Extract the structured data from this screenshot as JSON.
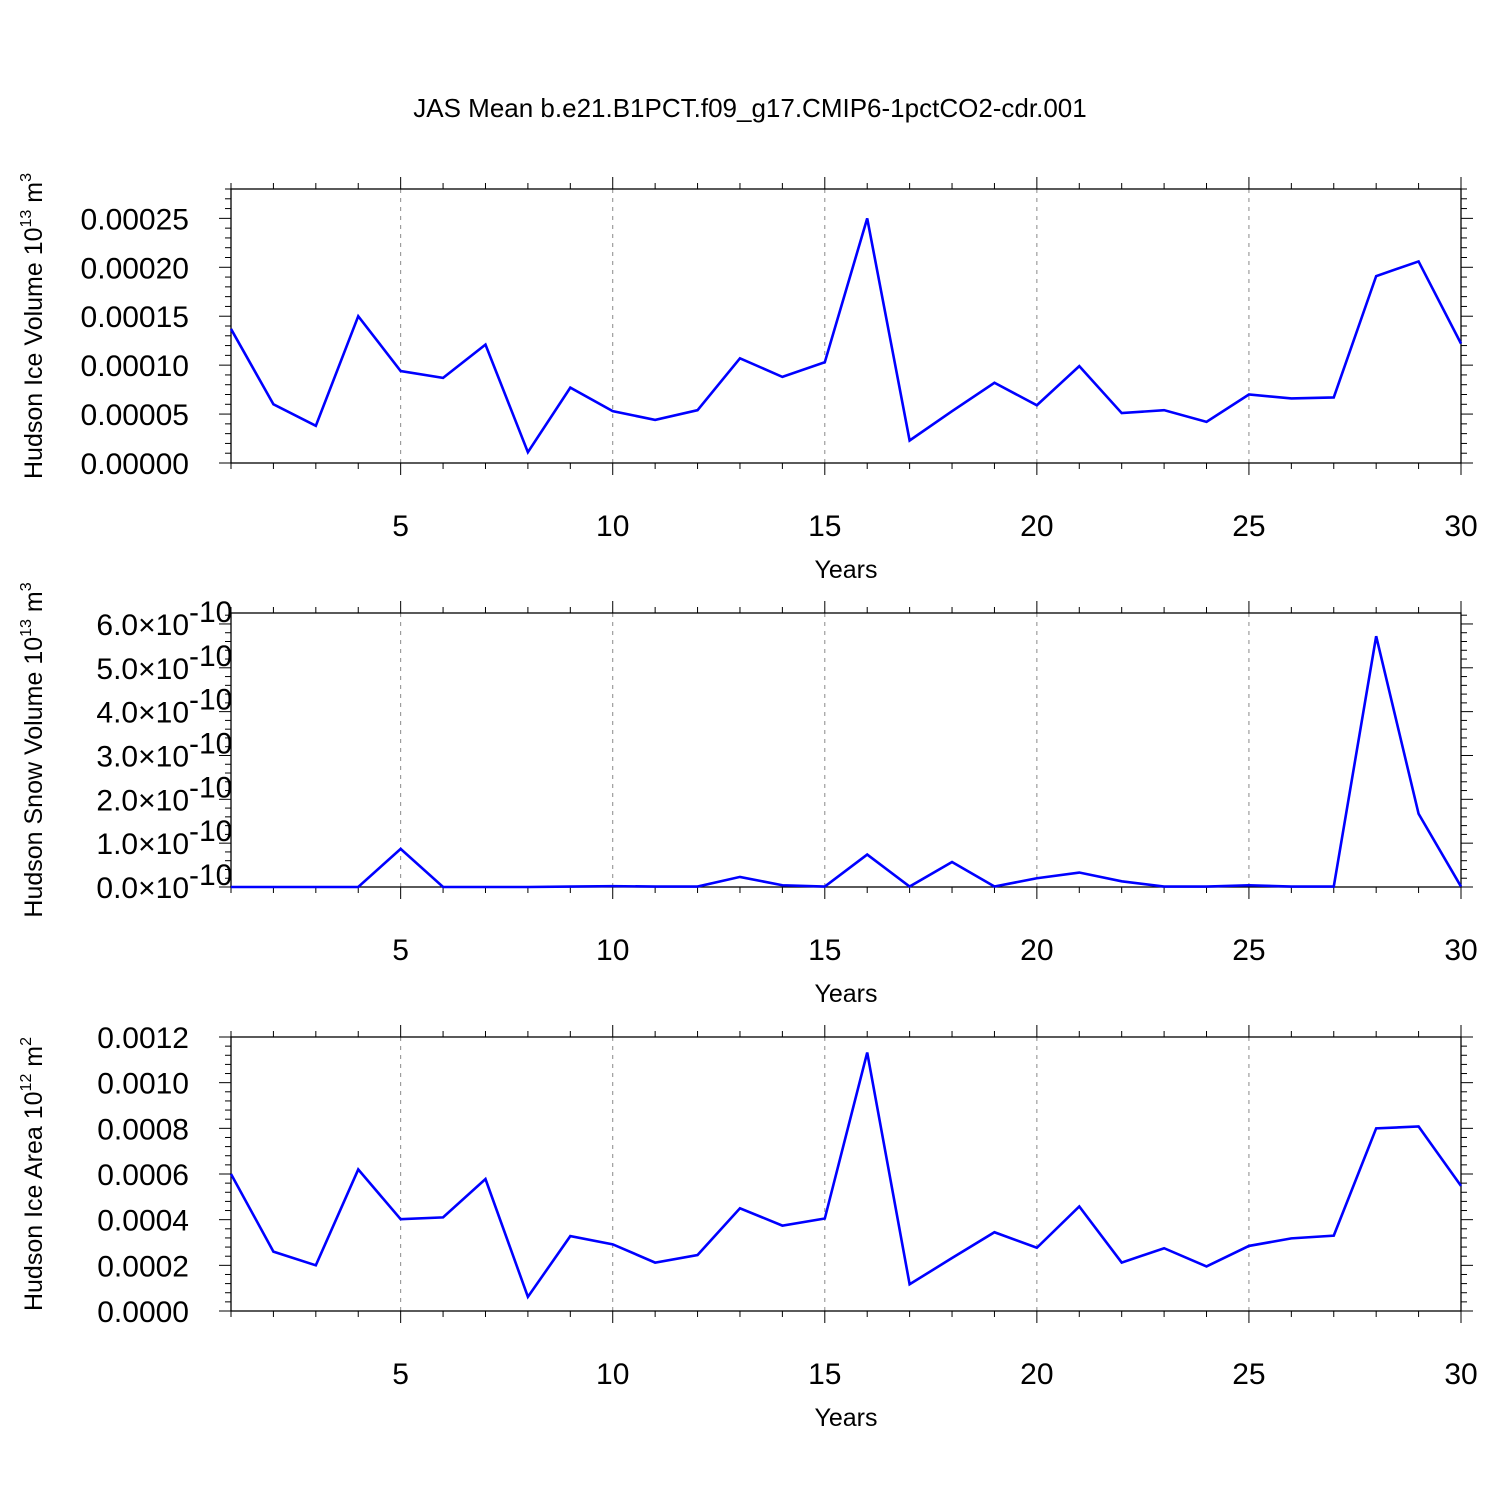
{
  "title": "JAS Mean b.e21.B1PCT.f09_g17.CMIP6-1pctCO2-cdr.001",
  "colors": {
    "series": "#0000ff",
    "axes": "#000000",
    "grid": "#8a8a8a"
  },
  "chart_data": [
    {
      "type": "line",
      "title": "JAS Mean b.e21.B1PCT.f09_g17.CMIP6-1pctCO2-cdr.001",
      "xlabel": "Years",
      "ylabel": {
        "text": "Hudson Ice Volume 10",
        "exp": "13",
        "unit": " m",
        "unit_exp": "3"
      },
      "xlim": [
        1,
        30
      ],
      "ylim": [
        0,
        0.00028
      ],
      "x_ticks": [
        5,
        10,
        15,
        20,
        25,
        30
      ],
      "x_tick_labels": [
        "5",
        "10",
        "15",
        "20",
        "25",
        "30"
      ],
      "y_ticks": [
        0,
        5e-05,
        0.0001,
        0.00015,
        0.0002,
        0.00025
      ],
      "y_tick_labels": [
        {
          "text": "0.00000"
        },
        {
          "text": "0.00005"
        },
        {
          "text": "0.00010"
        },
        {
          "text": "0.00015"
        },
        {
          "text": "0.00020"
        },
        {
          "text": "0.00025"
        }
      ],
      "x": [
        1,
        2,
        3,
        4,
        5,
        6,
        7,
        8,
        9,
        10,
        11,
        12,
        13,
        14,
        15,
        16,
        17,
        18,
        19,
        20,
        21,
        22,
        23,
        24,
        25,
        26,
        27,
        28,
        29,
        30
      ],
      "series": [
        {
          "name": "Hudson Ice Volume",
          "values": [
            0.000137,
            6e-05,
            3.8e-05,
            0.00015,
            9.4e-05,
            8.7e-05,
            0.000121,
            1.1e-05,
            7.7e-05,
            5.3e-05,
            4.4e-05,
            5.4e-05,
            0.000107,
            8.8e-05,
            0.000103,
            0.00025,
            2.3e-05,
            5.3e-05,
            8.2e-05,
            5.9e-05,
            9.9e-05,
            5.1e-05,
            5.4e-05,
            4.2e-05,
            7e-05,
            6.6e-05,
            6.7e-05,
            0.000191,
            0.000206,
            0.000122
          ]
        }
      ]
    },
    {
      "type": "line",
      "title": "",
      "xlabel": "Years",
      "ylabel": {
        "text": "Hudson Snow Volume 10",
        "exp": "13",
        "unit": " m",
        "unit_exp": "3"
      },
      "xlim": [
        1,
        30
      ],
      "ylim": [
        0,
        6.25e-10
      ],
      "x_ticks": [
        5,
        10,
        15,
        20,
        25,
        30
      ],
      "x_tick_labels": [
        "5",
        "10",
        "15",
        "20",
        "25",
        "30"
      ],
      "y_ticks": [
        0,
        1e-10,
        2e-10,
        3e-10,
        4e-10,
        5e-10,
        6e-10
      ],
      "y_tick_labels": [
        {
          "text": "0.0×10",
          "exp": "-10"
        },
        {
          "text": "1.0×10",
          "exp": "-10"
        },
        {
          "text": "2.0×10",
          "exp": "-10"
        },
        {
          "text": "3.0×10",
          "exp": "-10"
        },
        {
          "text": "4.0×10",
          "exp": "-10"
        },
        {
          "text": "5.0×10",
          "exp": "-10"
        },
        {
          "text": "6.0×10",
          "exp": "-10"
        }
      ],
      "x": [
        1,
        2,
        3,
        4,
        5,
        6,
        7,
        8,
        9,
        10,
        11,
        12,
        13,
        14,
        15,
        16,
        17,
        18,
        19,
        20,
        21,
        22,
        23,
        24,
        25,
        26,
        27,
        28,
        29,
        30
      ],
      "series": [
        {
          "name": "Hudson Snow Volume",
          "values": [
            0,
            0,
            0,
            0,
            8.7e-11,
            0,
            0,
            0,
            1e-12,
            2e-12,
            1e-12,
            1e-12,
            2.3e-11,
            4e-12,
            1e-12,
            7.4e-11,
            1e-12,
            5.7e-11,
            1e-12,
            2e-11,
            3.3e-11,
            1.3e-11,
            1e-12,
            1e-12,
            4e-12,
            1e-12,
            1e-12,
            5.72e-10,
            1.67e-10,
            1e-12
          ]
        }
      ]
    },
    {
      "type": "line",
      "title": "",
      "xlabel": "Years",
      "ylabel": {
        "text": "Hudson Ice Area 10",
        "exp": "12",
        "unit": " m",
        "unit_exp": "2"
      },
      "xlim": [
        1,
        30
      ],
      "ylim": [
        0,
        0.0012
      ],
      "x_ticks": [
        5,
        10,
        15,
        20,
        25,
        30
      ],
      "x_tick_labels": [
        "5",
        "10",
        "15",
        "20",
        "25",
        "30"
      ],
      "y_ticks": [
        0,
        0.0002,
        0.0004,
        0.0006,
        0.0008,
        0.001,
        0.0012
      ],
      "y_tick_labels": [
        {
          "text": "0.0000"
        },
        {
          "text": "0.0002"
        },
        {
          "text": "0.0004"
        },
        {
          "text": "0.0006"
        },
        {
          "text": "0.0008"
        },
        {
          "text": "0.0010"
        },
        {
          "text": "0.0012"
        }
      ],
      "x": [
        1,
        2,
        3,
        4,
        5,
        6,
        7,
        8,
        9,
        10,
        11,
        12,
        13,
        14,
        15,
        16,
        17,
        18,
        19,
        20,
        21,
        22,
        23,
        24,
        25,
        26,
        27,
        28,
        29,
        30
      ],
      "series": [
        {
          "name": "Hudson Ice Area",
          "values": [
            0.0006,
            0.00026,
            0.0002,
            0.00062,
            0.000402,
            0.00041,
            0.000578,
            6.2e-05,
            0.000328,
            0.000292,
            0.000212,
            0.000245,
            0.00045,
            0.000374,
            0.000405,
            0.001132,
            0.000117,
            0.000232,
            0.000345,
            0.000277,
            0.000458,
            0.000212,
            0.000275,
            0.000195,
            0.000285,
            0.000318,
            0.00033,
            0.0008,
            0.000808,
            0.000548
          ]
        }
      ]
    }
  ]
}
